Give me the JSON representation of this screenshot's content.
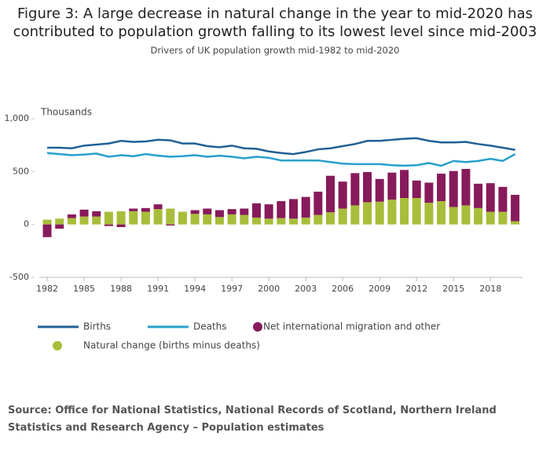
{
  "chart_data": {
    "type": "bar-line",
    "title": [
      "Figure 3: A large decrease in natural change in the year to mid-2020 has",
      "contributed to population growth falling to its lowest level since mid-2003"
    ],
    "subtitle": "Drivers of UK population growth mid-1982 to mid-2020",
    "ylabel": "Thousands",
    "x": [
      1982,
      1983,
      1984,
      1985,
      1986,
      1987,
      1988,
      1989,
      1990,
      1991,
      1992,
      1993,
      1994,
      1995,
      1996,
      1997,
      1998,
      1999,
      2000,
      2001,
      2002,
      2003,
      2004,
      2005,
      2006,
      2007,
      2008,
      2009,
      2010,
      2011,
      2012,
      2013,
      2014,
      2015,
      2016,
      2017,
      2018,
      2019,
      2020
    ],
    "xlim": [
      1981.36,
      2020.6
    ],
    "xticks": [
      1982,
      1985,
      1988,
      1991,
      1994,
      1997,
      2000,
      2003,
      2006,
      2009,
      2012,
      2015,
      2018
    ],
    "ylim": [
      -500,
      1000
    ],
    "yticks": [
      {
        "value": 1000,
        "label": "1,000"
      },
      500,
      0,
      -500
    ],
    "series": [
      {
        "name": "Births",
        "kind": "line",
        "color": "#206095",
        "values": [
          725,
          725,
          720,
          745,
          755,
          765,
          790,
          780,
          785,
          800,
          795,
          765,
          765,
          740,
          730,
          745,
          720,
          715,
          690,
          675,
          665,
          685,
          710,
          720,
          740,
          760,
          790,
          790,
          800,
          810,
          815,
          790,
          775,
          775,
          780,
          760,
          745,
          725,
          705
        ]
      },
      {
        "name": "Deaths",
        "kind": "line",
        "color": "#27a0cc",
        "values": [
          675,
          665,
          655,
          660,
          670,
          640,
          655,
          645,
          665,
          650,
          640,
          645,
          655,
          640,
          650,
          640,
          625,
          640,
          630,
          605,
          605,
          605,
          605,
          590,
          575,
          570,
          570,
          570,
          560,
          555,
          560,
          580,
          555,
          600,
          590,
          600,
          620,
          600,
          665
        ]
      },
      {
        "name": "Net international migration and other",
        "kind": "bar",
        "color": "#871a5b",
        "values": [
          -120,
          -40,
          35,
          65,
          50,
          -15,
          -25,
          25,
          35,
          45,
          -10,
          0,
          35,
          55,
          65,
          50,
          60,
          135,
          135,
          160,
          185,
          195,
          220,
          345,
          255,
          305,
          285,
          215,
          255,
          265,
          165,
          190,
          260,
          340,
          345,
          230,
          270,
          235,
          250
        ]
      },
      {
        "name": "Natural change (births minus deaths)",
        "kind": "bar",
        "color": "#a8bd3a",
        "values": [
          45,
          55,
          60,
          75,
          75,
          120,
          125,
          125,
          120,
          145,
          150,
          120,
          100,
          95,
          70,
          95,
          90,
          65,
          55,
          60,
          55,
          65,
          90,
          115,
          150,
          180,
          210,
          215,
          235,
          250,
          250,
          205,
          220,
          165,
          180,
          155,
          120,
          120,
          30
        ]
      }
    ]
  },
  "source": "Source: Office for National Statistics, National Records of Scotland, Northern Ireland Statistics and Research Agency – Population estimates"
}
